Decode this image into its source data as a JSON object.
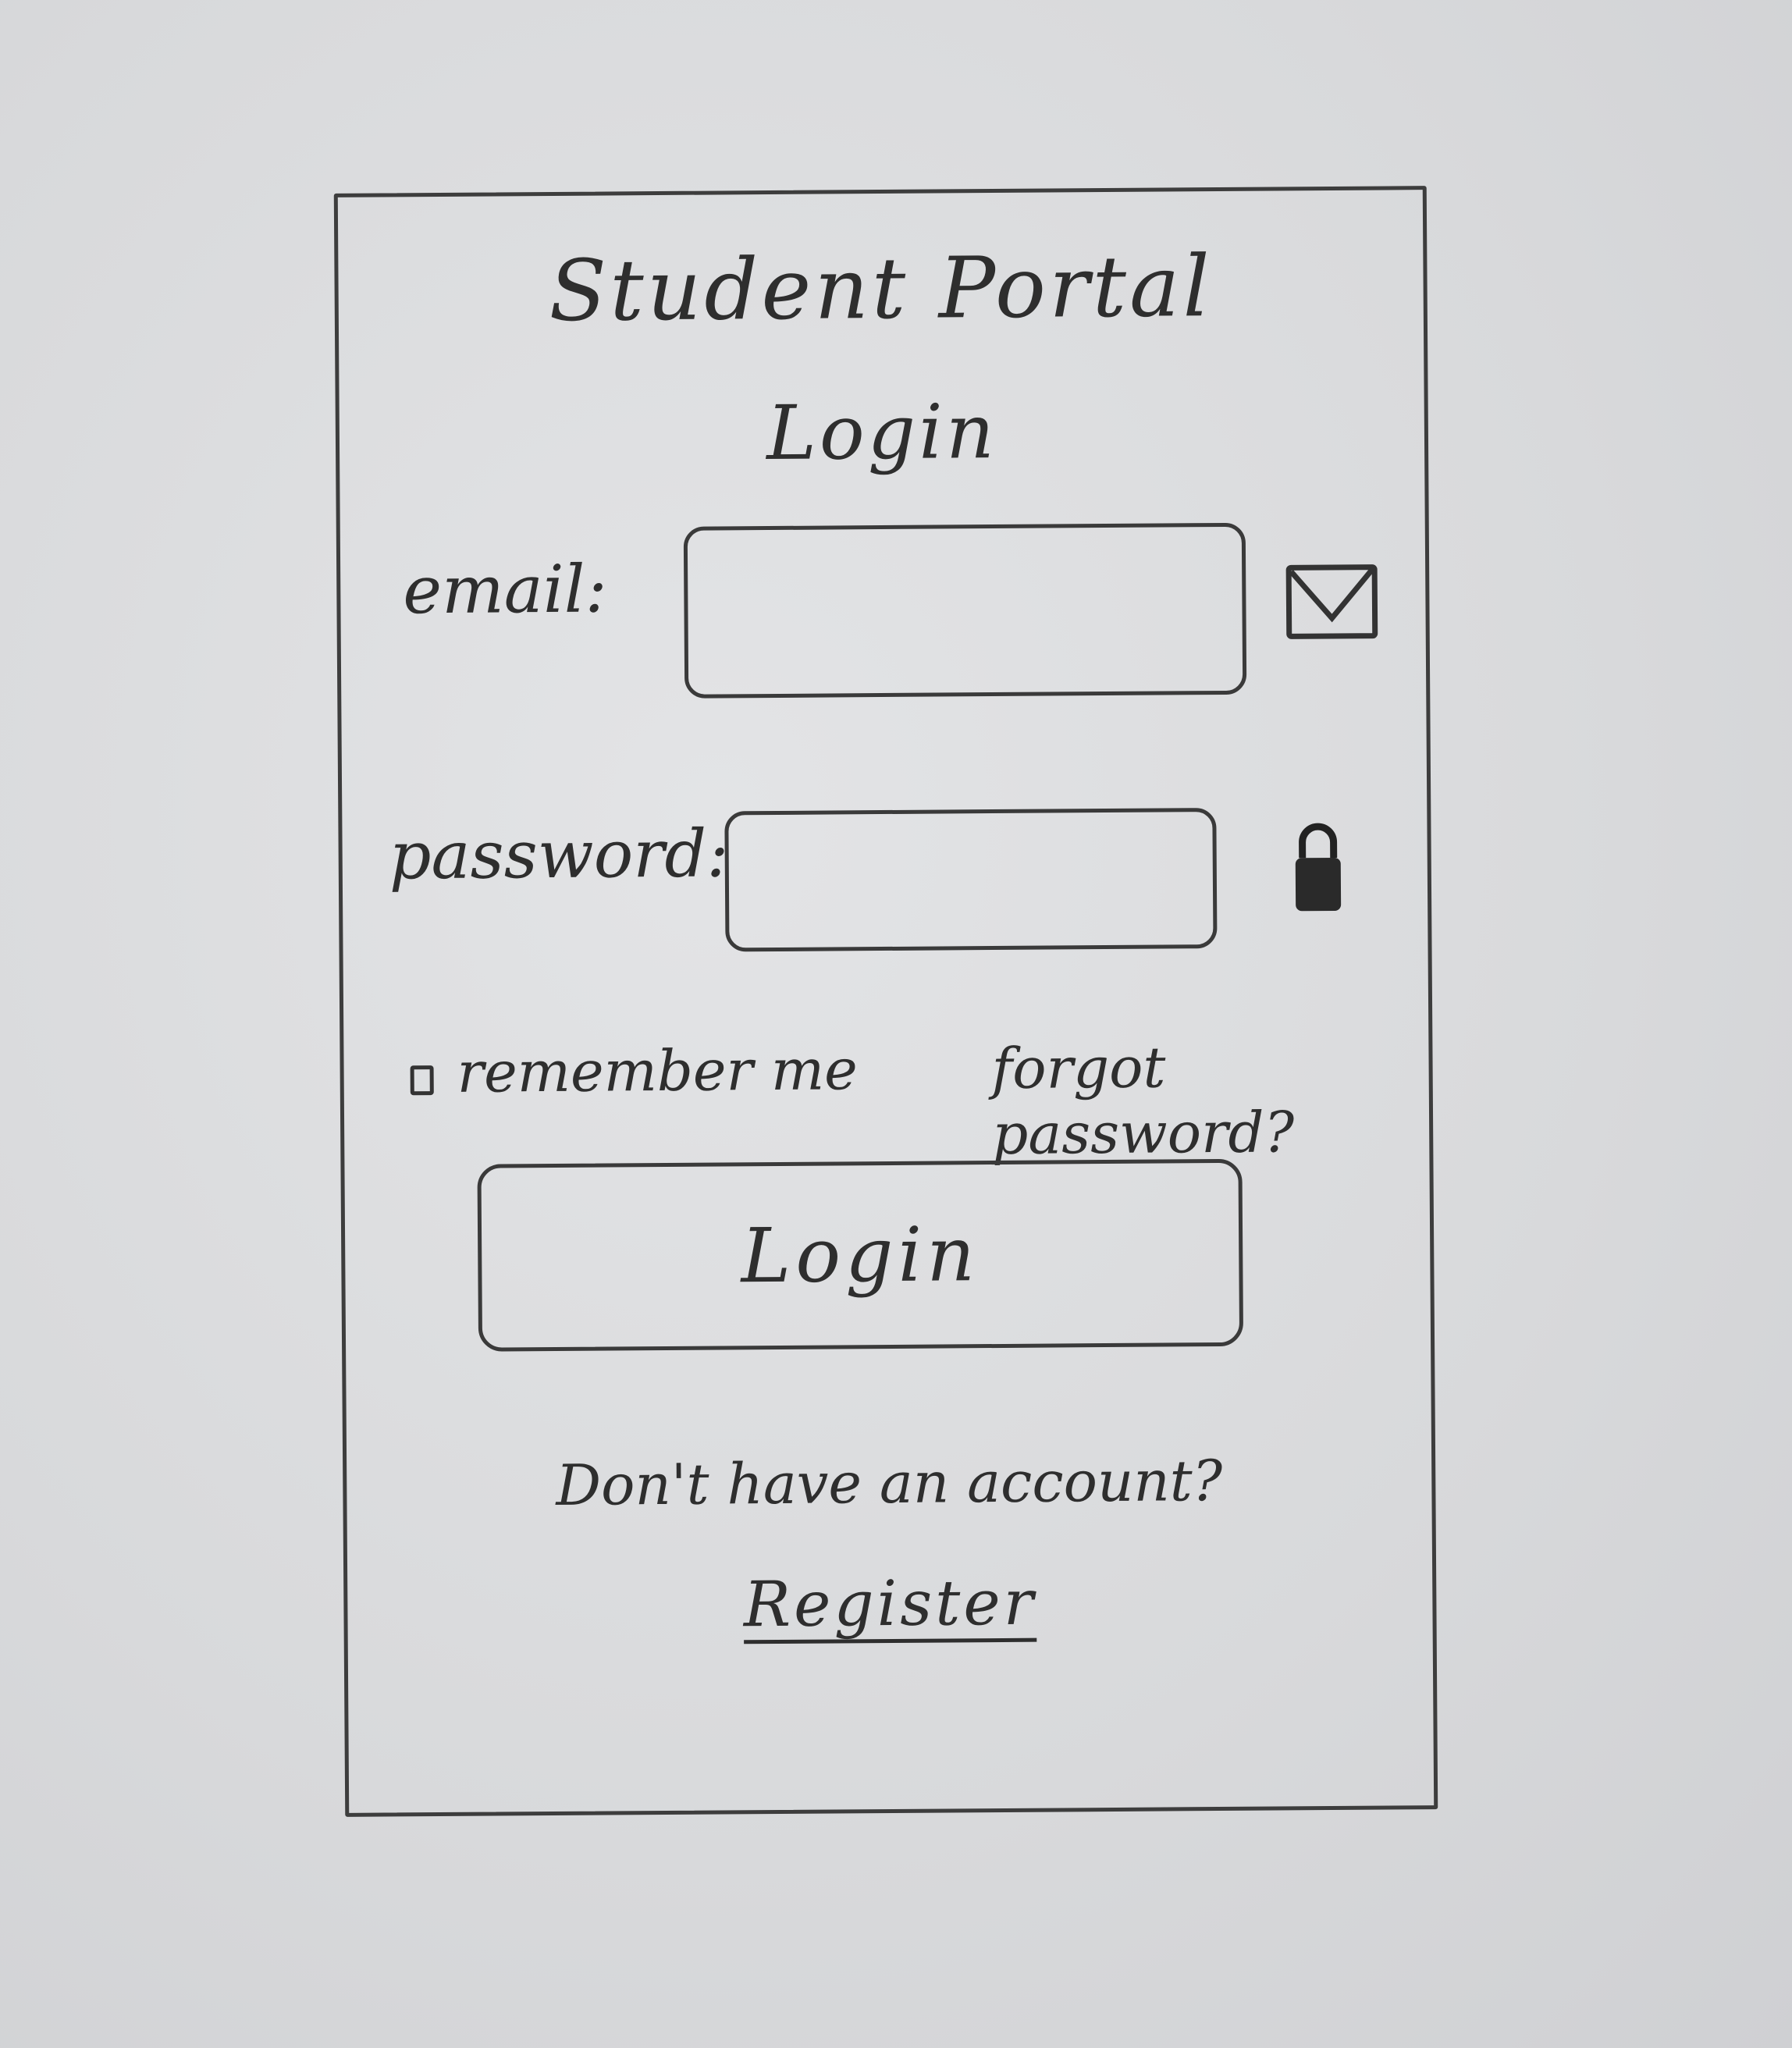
{
  "header": {
    "title": "Student Portal",
    "subtitle": "Login"
  },
  "form": {
    "email_label": "email:",
    "email_value": "",
    "password_label": "password:",
    "password_value": "",
    "remember_label": "remember me",
    "forgot_label": "forgot password?",
    "login_label": "Login"
  },
  "footer": {
    "prompt": "Don't have an account?",
    "register_label": "Register"
  },
  "icons": {
    "email": "mail-icon",
    "password": "lock-icon"
  },
  "colors": {
    "ink": "#2e2e2e",
    "paper": "#d9dadc"
  }
}
